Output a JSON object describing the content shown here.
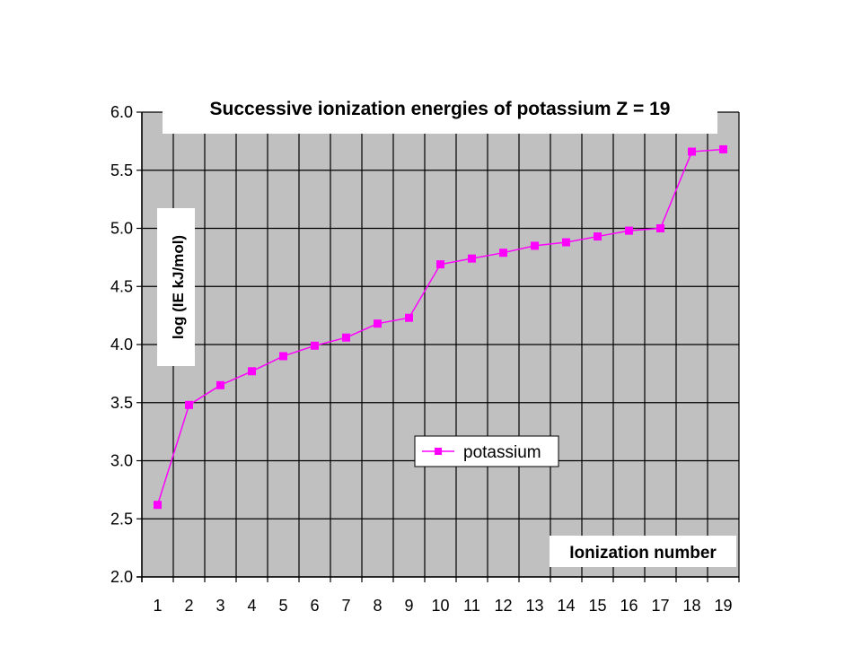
{
  "chart_data": {
    "type": "line",
    "title": "Successive ionization energies of potassium Z = 19",
    "xlabel": "Ionization number",
    "ylabel": "log (IE kJ/mol)",
    "categories": [
      "1",
      "2",
      "3",
      "4",
      "5",
      "6",
      "7",
      "8",
      "9",
      "10",
      "11",
      "12",
      "13",
      "14",
      "15",
      "16",
      "17",
      "18",
      "19"
    ],
    "ylim": [
      2.0,
      6.0
    ],
    "yticks": [
      "2.0",
      "2.5",
      "3.0",
      "3.5",
      "4.0",
      "4.5",
      "5.0",
      "5.5",
      "6.0"
    ],
    "grid": true,
    "legend_position": "center",
    "series": [
      {
        "name": "potassium",
        "color": "#ff00ff",
        "values": [
          2.62,
          3.48,
          3.65,
          3.77,
          3.9,
          3.99,
          4.06,
          4.18,
          4.23,
          4.69,
          4.74,
          4.79,
          4.85,
          4.88,
          4.93,
          4.98,
          5.0,
          5.66,
          5.68
        ]
      }
    ],
    "colors": {
      "plot_background": "#c0c0c0",
      "grid": "#000000",
      "series": "#ff00ff"
    }
  }
}
